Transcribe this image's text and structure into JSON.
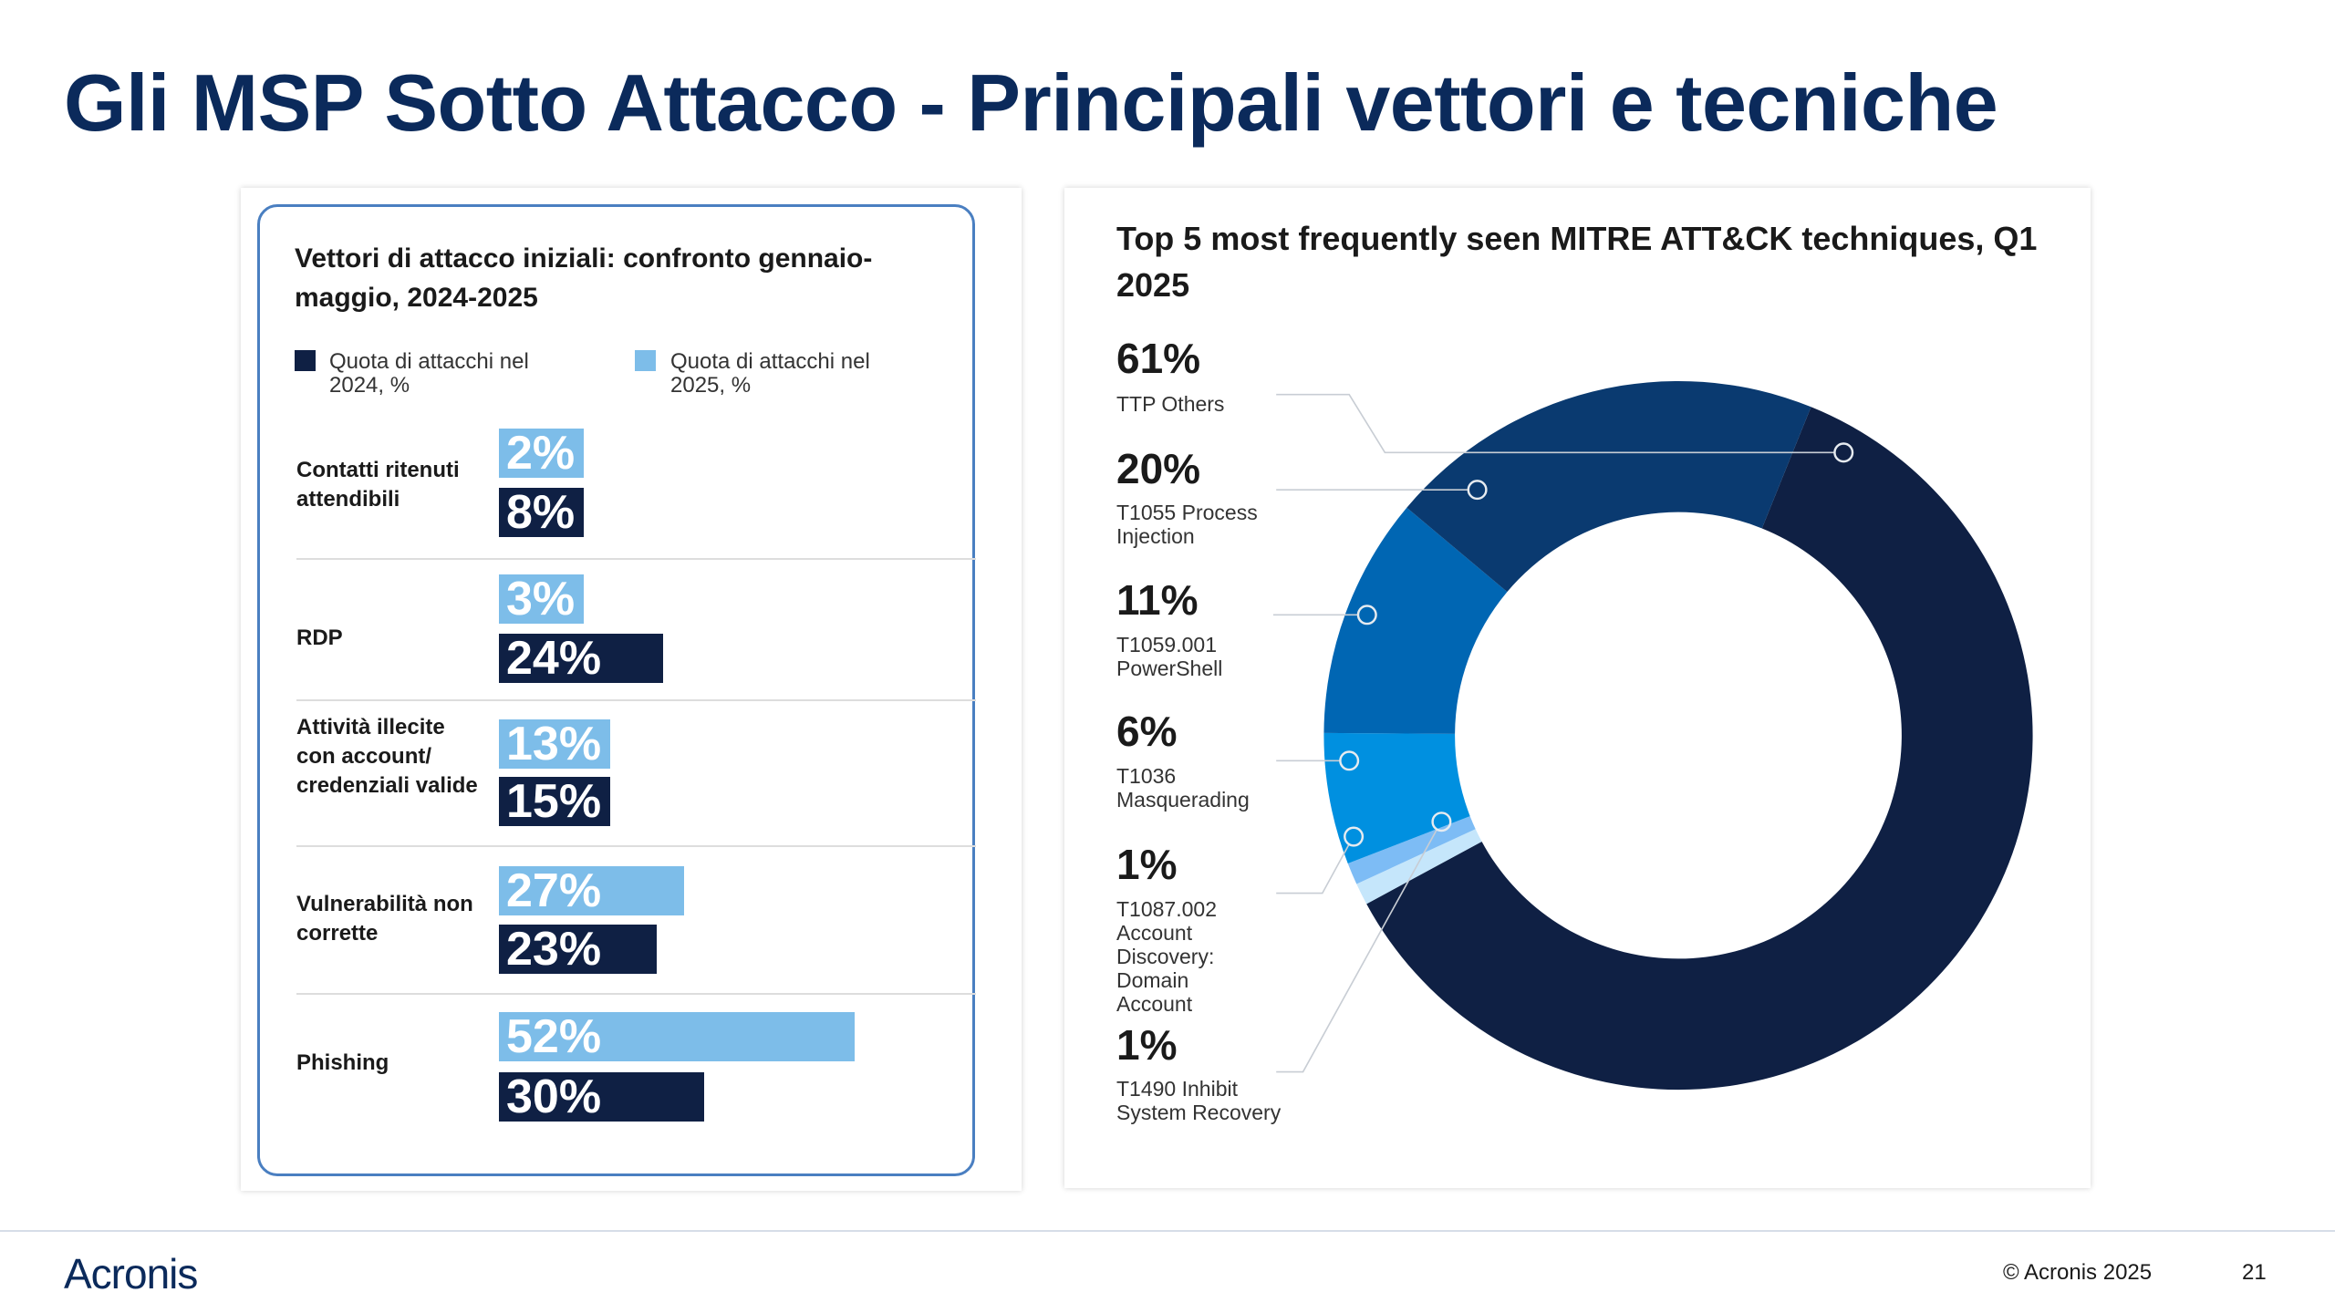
{
  "slide": {
    "title": "Gli MSP Sotto Attacco - Principali vettori e tecniche",
    "footer_logo": "Acronis",
    "copyright": "© Acronis 2025",
    "page_number": "21"
  },
  "chart_data": [
    {
      "type": "bar",
      "orientation": "horizontal",
      "title": "Vettori di attacco iniziali: confronto gennaio-maggio, 2024-2025",
      "categories": [
        "Contatti ritenuti attendibili",
        "RDP",
        "Attività illecite con account/ credenziali valide",
        "Vulnerabilità non corrette",
        "Phishing"
      ],
      "series": [
        {
          "name": "Quota di attacchi nel 2025, %",
          "color": "#7dbde9",
          "values": [
            2,
            3,
            13,
            27,
            52
          ],
          "labels": [
            "2%",
            "3%",
            "13%",
            "27%",
            "52%"
          ]
        },
        {
          "name": "Quota di attacchi nel 2024, %",
          "color": "#0f2044",
          "values": [
            8,
            24,
            15,
            23,
            30
          ],
          "labels": [
            "8%",
            "24%",
            "15%",
            "23%",
            "30%"
          ]
        }
      ],
      "legend": [
        {
          "label": "Quota di attacchi nel 2024, %",
          "color": "#0f2044"
        },
        {
          "label": "Quota di attacchi nel 2025, %",
          "color": "#7dbde9"
        }
      ]
    },
    {
      "type": "pie",
      "donut": true,
      "title": "Top 5 most frequently seen MITRE ATT&CK techniques, Q1 2025",
      "slices": [
        {
          "label": "TTP Others",
          "value": 61,
          "pct_label": "61%",
          "color": "#0f2044"
        },
        {
          "label": "T1490 Inhibit System Recovery",
          "value": 1,
          "pct_label": "1%",
          "color": "#c5e6fb"
        },
        {
          "label": "T1087.002 Account Discovery: Domain Account",
          "value": 1,
          "pct_label": "1%",
          "color": "#7dbcf5"
        },
        {
          "label": "T1036 Masquerading",
          "value": 6,
          "pct_label": "6%",
          "color": "#0090e0"
        },
        {
          "label": "T1059.001 PowerShell",
          "value": 11,
          "pct_label": "11%",
          "color": "#0066b3"
        },
        {
          "label": "T1055 Process Injection",
          "value": 20,
          "pct_label": "20%",
          "color": "#0a3a70"
        }
      ]
    }
  ]
}
